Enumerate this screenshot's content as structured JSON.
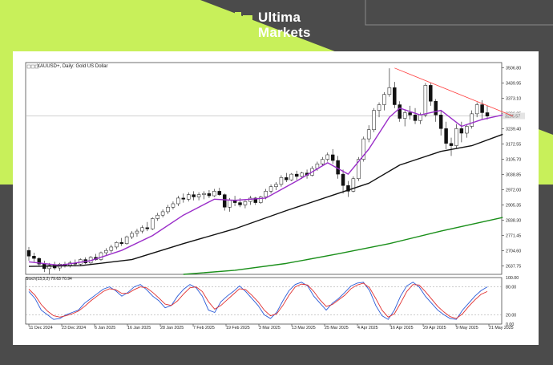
{
  "brand": {
    "name_line1": "Ultima",
    "name_line2": "Markets",
    "colors": {
      "lime": "#c8f05a",
      "dark": "#4b4b4b"
    },
    "logo_icon": "ultima-logo-icon"
  },
  "chart_data": {
    "type": "candlestick",
    "title": "XAUUSD+, Daily: Gold US Dollar",
    "price_axis_labels": [
      "3506.80",
      "3439.95",
      "3373.10",
      "3306.25",
      "3239.40",
      "3172.55",
      "3105.70",
      "3038.85",
      "2972.00",
      "2905.35",
      "2838.30",
      "2771.45",
      "2704.60",
      "2637.75"
    ],
    "current_price_label": "3295.57",
    "date_labels": [
      "11 Dec 2024",
      "23 Dec 2024",
      "6 Jan 2025",
      "16 Jan 2025",
      "28 Jan 2025",
      "7 Feb 2025",
      "19 Feb 2025",
      "3 Mar 2025",
      "13 Mar 2025",
      "25 Mar 2025",
      "4 Apr 2025",
      "16 Apr 2025",
      "29 Apr 2025",
      "9 May 2025",
      "21 May 2025"
    ],
    "ylim": [
      2600,
      3530
    ],
    "candles": [
      [
        2705,
        2720,
        2660,
        2680
      ],
      [
        2680,
        2695,
        2655,
        2670
      ],
      [
        2670,
        2675,
        2635,
        2645
      ],
      [
        2645,
        2660,
        2610,
        2625
      ],
      [
        2625,
        2650,
        2600,
        2640
      ],
      [
        2640,
        2655,
        2620,
        2628
      ],
      [
        2628,
        2650,
        2615,
        2645
      ],
      [
        2645,
        2655,
        2630,
        2640
      ],
      [
        2640,
        2660,
        2630,
        2650
      ],
      [
        2650,
        2665,
        2635,
        2645
      ],
      [
        2645,
        2670,
        2640,
        2665
      ],
      [
        2665,
        2675,
        2645,
        2650
      ],
      [
        2650,
        2680,
        2645,
        2675
      ],
      [
        2675,
        2690,
        2660,
        2665
      ],
      [
        2665,
        2700,
        2660,
        2695
      ],
      [
        2695,
        2715,
        2685,
        2705
      ],
      [
        2705,
        2730,
        2695,
        2720
      ],
      [
        2720,
        2745,
        2710,
        2740
      ],
      [
        2740,
        2760,
        2725,
        2735
      ],
      [
        2735,
        2770,
        2730,
        2765
      ],
      [
        2765,
        2790,
        2755,
        2780
      ],
      [
        2780,
        2800,
        2765,
        2790
      ],
      [
        2790,
        2815,
        2780,
        2805
      ],
      [
        2805,
        2830,
        2790,
        2800
      ],
      [
        2800,
        2850,
        2795,
        2845
      ],
      [
        2845,
        2870,
        2835,
        2860
      ],
      [
        2860,
        2885,
        2850,
        2875
      ],
      [
        2875,
        2905,
        2865,
        2895
      ],
      [
        2895,
        2920,
        2885,
        2910
      ],
      [
        2910,
        2945,
        2900,
        2935
      ],
      [
        2935,
        2955,
        2915,
        2930
      ],
      [
        2930,
        2960,
        2920,
        2950
      ],
      [
        2950,
        2965,
        2925,
        2940
      ],
      [
        2940,
        2960,
        2925,
        2950
      ],
      [
        2950,
        2965,
        2930,
        2955
      ],
      [
        2955,
        2970,
        2935,
        2945
      ],
      [
        2945,
        2975,
        2940,
        2965
      ],
      [
        2965,
        2980,
        2945,
        2950
      ],
      [
        2950,
        2955,
        2880,
        2895
      ],
      [
        2895,
        2935,
        2875,
        2925
      ],
      [
        2925,
        2945,
        2900,
        2915
      ],
      [
        2915,
        2935,
        2895,
        2905
      ],
      [
        2905,
        2925,
        2890,
        2920
      ],
      [
        2920,
        2945,
        2905,
        2935
      ],
      [
        2935,
        2940,
        2905,
        2915
      ],
      [
        2915,
        2945,
        2910,
        2940
      ],
      [
        2940,
        2975,
        2930,
        2965
      ],
      [
        2965,
        2995,
        2955,
        2985
      ],
      [
        2985,
        3005,
        2970,
        2995
      ],
      [
        2995,
        3035,
        2985,
        3025
      ],
      [
        3025,
        3045,
        3005,
        3015
      ],
      [
        3015,
        3045,
        3010,
        3040
      ],
      [
        3040,
        3055,
        3015,
        3030
      ],
      [
        3030,
        3050,
        3020,
        3045
      ],
      [
        3045,
        3060,
        3020,
        3035
      ],
      [
        3035,
        3075,
        3030,
        3065
      ],
      [
        3065,
        3095,
        3055,
        3085
      ],
      [
        3085,
        3115,
        3075,
        3105
      ],
      [
        3105,
        3135,
        3095,
        3125
      ],
      [
        3125,
        3150,
        3085,
        3100
      ],
      [
        3100,
        3120,
        3020,
        3040
      ],
      [
        3040,
        3060,
        2955,
        2990
      ],
      [
        2990,
        3010,
        2940,
        2965
      ],
      [
        2965,
        3030,
        2960,
        3020
      ],
      [
        3020,
        3115,
        3010,
        3105
      ],
      [
        3105,
        3205,
        3095,
        3195
      ],
      [
        3195,
        3255,
        3180,
        3235
      ],
      [
        3235,
        3330,
        3225,
        3320
      ],
      [
        3320,
        3355,
        3290,
        3345
      ],
      [
        3345,
        3400,
        3320,
        3390
      ],
      [
        3390,
        3505,
        3380,
        3420
      ],
      [
        3420,
        3445,
        3330,
        3345
      ],
      [
        3345,
        3360,
        3270,
        3285
      ],
      [
        3285,
        3320,
        3250,
        3310
      ],
      [
        3310,
        3340,
        3280,
        3300
      ],
      [
        3300,
        3330,
        3260,
        3275
      ],
      [
        3275,
        3310,
        3260,
        3300
      ],
      [
        3300,
        3440,
        3290,
        3430
      ],
      [
        3430,
        3440,
        3340,
        3360
      ],
      [
        3360,
        3370,
        3270,
        3300
      ],
      [
        3300,
        3320,
        3210,
        3240
      ],
      [
        3240,
        3270,
        3150,
        3175
      ],
      [
        3175,
        3200,
        3120,
        3165
      ],
      [
        3165,
        3260,
        3155,
        3240
      ],
      [
        3240,
        3270,
        3180,
        3220
      ],
      [
        3220,
        3260,
        3200,
        3250
      ],
      [
        3250,
        3320,
        3240,
        3305
      ],
      [
        3305,
        3355,
        3290,
        3345
      ],
      [
        3345,
        3365,
        3280,
        3310
      ],
      [
        3310,
        3340,
        3280,
        3295
      ]
    ],
    "series": [
      {
        "name": "",
        "color": "#9b2fc9",
        "points": [
          [
            0,
            2655
          ],
          [
            6,
            2640
          ],
          [
            12,
            2660
          ],
          [
            18,
            2705
          ],
          [
            24,
            2770
          ],
          [
            30,
            2860
          ],
          [
            36,
            2930
          ],
          [
            40,
            2925
          ],
          [
            46,
            2935
          ],
          [
            52,
            3010
          ],
          [
            58,
            3090
          ],
          [
            62,
            3040
          ],
          [
            66,
            3150
          ],
          [
            70,
            3290
          ],
          [
            72,
            3330
          ],
          [
            76,
            3300
          ],
          [
            80,
            3320
          ],
          [
            84,
            3250
          ],
          [
            88,
            3280
          ],
          [
            92,
            3300
          ]
        ]
      },
      {
        "name": "",
        "color": "#111111",
        "points": [
          [
            0,
            2635
          ],
          [
            10,
            2638
          ],
          [
            20,
            2665
          ],
          [
            30,
            2735
          ],
          [
            40,
            2800
          ],
          [
            50,
            2880
          ],
          [
            60,
            2955
          ],
          [
            66,
            3000
          ],
          [
            72,
            3080
          ],
          [
            80,
            3140
          ],
          [
            86,
            3165
          ],
          [
            92,
            3215
          ]
        ]
      },
      {
        "name": "",
        "color": "#1a8f1a",
        "points": [
          [
            30,
            2600
          ],
          [
            40,
            2618
          ],
          [
            50,
            2648
          ],
          [
            60,
            2690
          ],
          [
            70,
            2735
          ],
          [
            80,
            2790
          ],
          [
            92,
            2850
          ]
        ]
      }
    ],
    "trendline": {
      "color": "#ff3b3b",
      "from": [
        71,
        3506
      ],
      "to": [
        94,
        3295
      ]
    },
    "oscillator": {
      "label": "Stoch(13,3,2) 79.63 70.94",
      "levels": [
        "100.00",
        "80.00",
        "20.00",
        "0.00"
      ],
      "k": [
        70,
        55,
        30,
        20,
        10,
        12,
        20,
        25,
        30,
        45,
        55,
        65,
        75,
        80,
        72,
        60,
        68,
        80,
        85,
        74,
        60,
        50,
        35,
        40,
        60,
        75,
        85,
        78,
        60,
        30,
        25,
        48,
        60,
        70,
        82,
        70,
        55,
        40,
        20,
        12,
        25,
        50,
        72,
        85,
        90,
        82,
        60,
        45,
        30,
        45,
        55,
        68,
        82,
        88,
        90,
        72,
        40,
        18,
        10,
        30,
        60,
        82,
        90,
        80,
        60,
        45,
        30,
        20,
        12,
        10,
        30,
        45,
        60,
        72,
        80
      ],
      "d": [
        75,
        62,
        42,
        28,
        18,
        15,
        18,
        22,
        28,
        38,
        50,
        60,
        70,
        76,
        74,
        66,
        66,
        74,
        80,
        78,
        68,
        56,
        43,
        40,
        50,
        65,
        78,
        80,
        70,
        48,
        32,
        40,
        52,
        64,
        76,
        74,
        62,
        48,
        30,
        18,
        22,
        40,
        62,
        80,
        86,
        84,
        70,
        52,
        38,
        42,
        52,
        62,
        76,
        84,
        88,
        78,
        55,
        30,
        15,
        22,
        45,
        70,
        85,
        84,
        70,
        54,
        38,
        26,
        16,
        12,
        22,
        38,
        52,
        64,
        70
      ]
    }
  }
}
